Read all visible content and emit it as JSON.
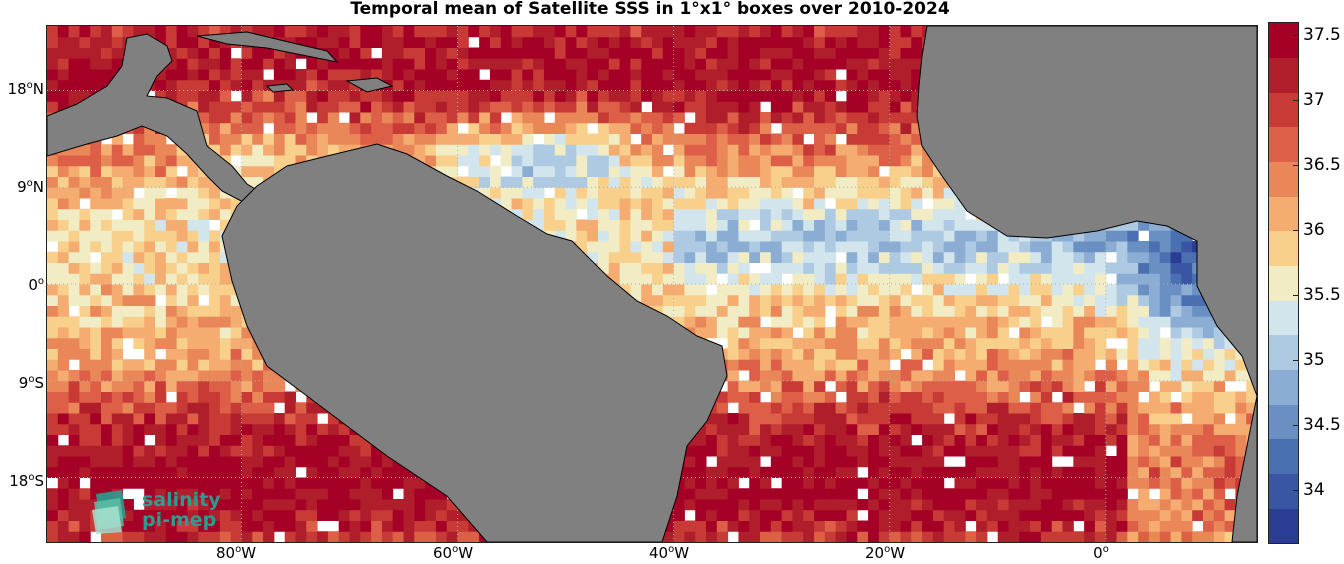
{
  "title": "Temporal mean of Satellite SSS in 1°x1° boxes over 2010-2024",
  "map": {
    "region": "Tropical Atlantic",
    "variable": "Sea Surface Salinity",
    "lon_range": [
      -98,
      14
    ],
    "lat_range": [
      -24,
      24
    ],
    "land_color": "#808080",
    "coast_color": "#000000",
    "grid": true,
    "lat_ticks": [
      {
        "deg": "18",
        "hemi": "N",
        "lat": 18
      },
      {
        "deg": "9",
        "hemi": "N",
        "lat": 9
      },
      {
        "deg": "0",
        "hemi": "",
        "lat": 0
      },
      {
        "deg": "9",
        "hemi": "S",
        "lat": -9
      },
      {
        "deg": "18",
        "hemi": "S",
        "lat": -18
      }
    ],
    "lon_ticks": [
      {
        "deg": "80",
        "hemi": "W",
        "lon": -80
      },
      {
        "deg": "60",
        "hemi": "W",
        "lon": -60
      },
      {
        "deg": "40",
        "hemi": "W",
        "lon": -40
      },
      {
        "deg": "20",
        "hemi": "W",
        "lon": -20
      },
      {
        "deg": "0",
        "hemi": "",
        "lon": 0
      }
    ]
  },
  "colorbar": {
    "min": 33.6,
    "max": 37.6,
    "ticks": [
      "37.5",
      "37",
      "36.5",
      "36",
      "35.5",
      "35",
      "34.5",
      "34"
    ],
    "tick_values": [
      37.5,
      37,
      36.5,
      36,
      35.5,
      35,
      34.5,
      34
    ],
    "colors": [
      "#2b3c95",
      "#3a55a4",
      "#4a70b2",
      "#6a8fc2",
      "#8bacd3",
      "#aecae2",
      "#d3e5ec",
      "#f1ecc4",
      "#f8d08c",
      "#f4ac70",
      "#ea8759",
      "#dd5f48",
      "#c83a35",
      "#b01e2c",
      "#a50026"
    ]
  },
  "logo": {
    "line1": "salinity",
    "line2": "pi-mep"
  }
}
